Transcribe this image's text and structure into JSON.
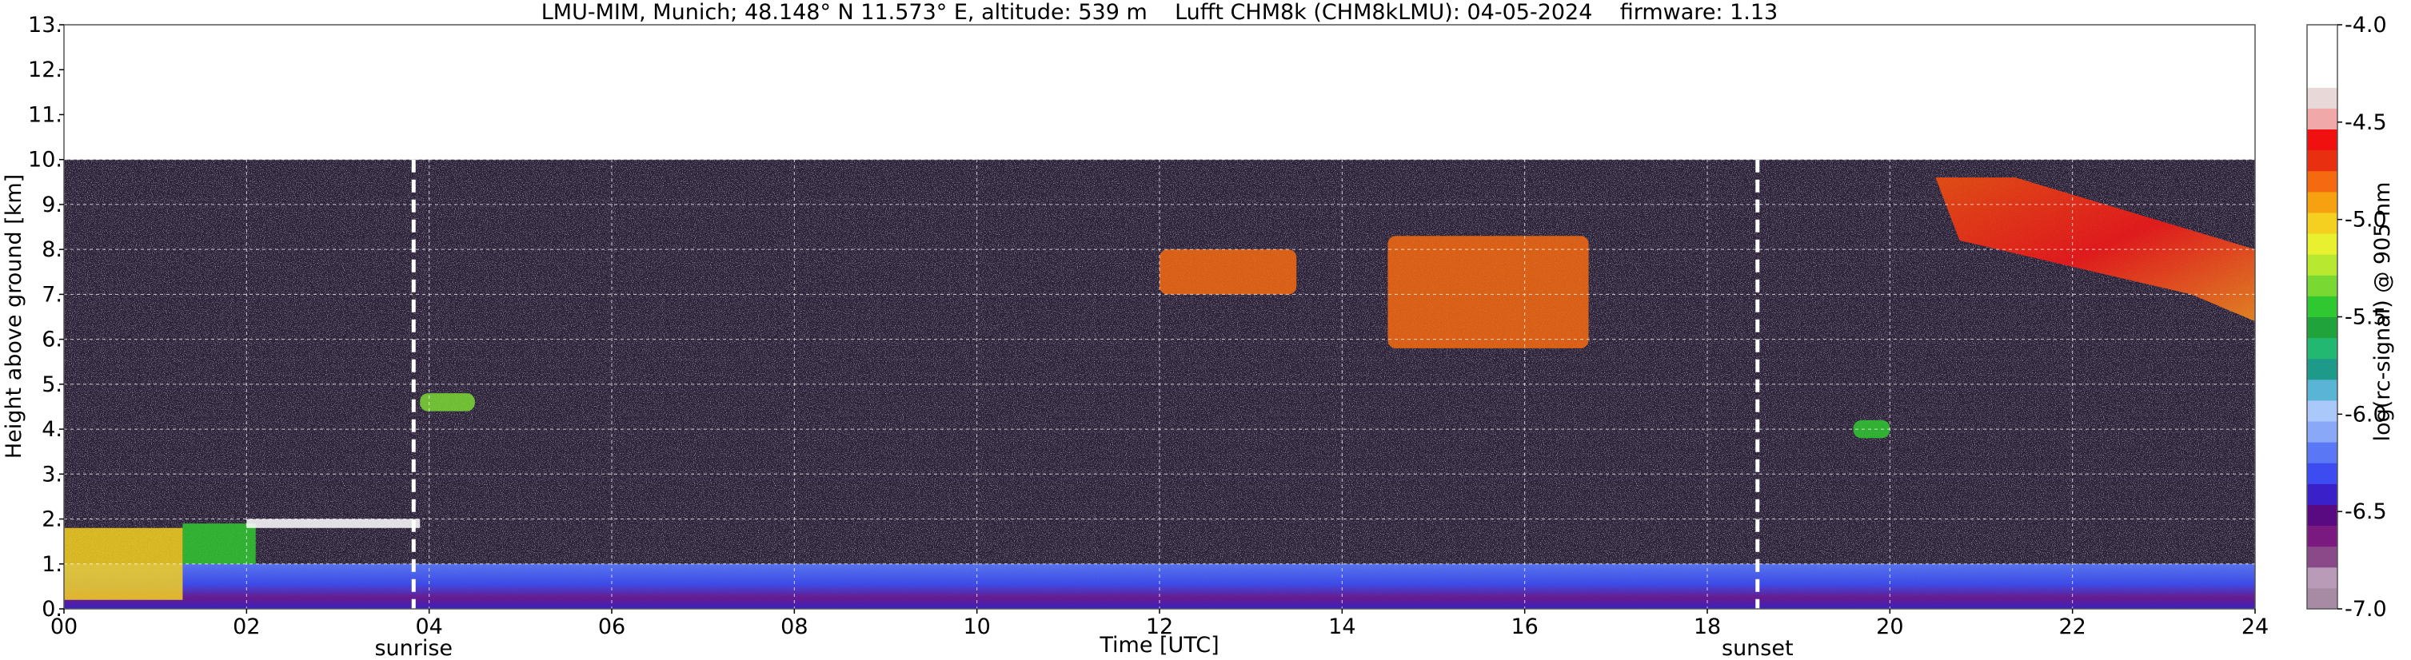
{
  "chart_data": {
    "type": "heatmap",
    "title": "LMU-MIM, Munich; 48.148° N 11.573° E, altitude: 539 m    Lufft CHM8k (CHM8kLMU): 04-05-2024    firmware: 1.13",
    "xlabel": "Time [UTC]",
    "ylabel": "Height above ground [km]",
    "colorbar_label": "log(rc-signal) @ 905 nm",
    "xlim": [
      0,
      24
    ],
    "ylim": [
      0,
      13
    ],
    "x_ticks": [
      "00",
      "02",
      "04",
      "06",
      "08",
      "10",
      "12",
      "14",
      "16",
      "18",
      "20",
      "22",
      "24"
    ],
    "y_ticks": [
      "0.",
      "1.",
      "2.",
      "3.",
      "4.",
      "5.",
      "6.",
      "7.",
      "8.",
      "9.",
      "10.",
      "11.",
      "12.",
      "13."
    ],
    "colorbar_range": [
      -7.0,
      -4.0
    ],
    "colorbar_ticks": [
      "-4.0",
      "-4.5",
      "-5.0",
      "-5.5",
      "-6.0",
      "-6.5",
      "-7.0"
    ],
    "colormap": [
      "#a78aa3",
      "#b99bb8",
      "#8a4a8a",
      "#7a1a80",
      "#5a0a80",
      "#3a20c8",
      "#3d4cf0",
      "#5a78f5",
      "#8aa8f8",
      "#aac8fa",
      "#5ab4d4",
      "#1e9a8a",
      "#22b872",
      "#1fa33a",
      "#30c830",
      "#7ad832",
      "#b8e830",
      "#e8f030",
      "#f5d020",
      "#f7a010",
      "#f56a10",
      "#e83010",
      "#f01010",
      "#f0a8a8",
      "#e8d8d8",
      "#ffffff",
      "#ffffff",
      "#ffffff"
    ],
    "grid": true,
    "data_max_height_km": 10,
    "vertical_markers": [
      {
        "label": "sunrise",
        "x": 3.83
      },
      {
        "label": "sunset",
        "x": 18.55
      }
    ],
    "features": [
      {
        "name": "boundary layer aerosol",
        "x": [
          0,
          24
        ],
        "y": [
          0,
          1.0
        ],
        "value": -6.3
      },
      {
        "name": "early fog/low cloud",
        "x": [
          0.0,
          1.3
        ],
        "y": [
          0.2,
          1.8
        ],
        "value": -5.0
      },
      {
        "name": "low cloud",
        "x": [
          1.3,
          2.1
        ],
        "y": [
          1.0,
          1.9
        ],
        "value": -5.5
      },
      {
        "name": "cloud top",
        "x": [
          2.0,
          3.9
        ],
        "y": [
          1.8,
          2.0
        ],
        "value": -4.2
      },
      {
        "name": "cloud patch",
        "x": [
          3.9,
          4.5
        ],
        "y": [
          4.4,
          4.8
        ],
        "value": -5.3
      },
      {
        "name": "cirrus",
        "x": [
          12.0,
          13.5
        ],
        "y": [
          7.0,
          8.0
        ],
        "value": -4.8
      },
      {
        "name": "cirrus",
        "x": [
          14.5,
          16.7
        ],
        "y": [
          5.8,
          8.3
        ],
        "value": -4.8
      },
      {
        "name": "cloud patch",
        "x": [
          19.6,
          20.0
        ],
        "y": [
          3.8,
          4.2
        ],
        "value": -5.5
      },
      {
        "name": "high cloud band",
        "x": [
          20.5,
          24.0
        ],
        "y": [
          6.4,
          9.6
        ],
        "value": -5.0
      }
    ]
  }
}
